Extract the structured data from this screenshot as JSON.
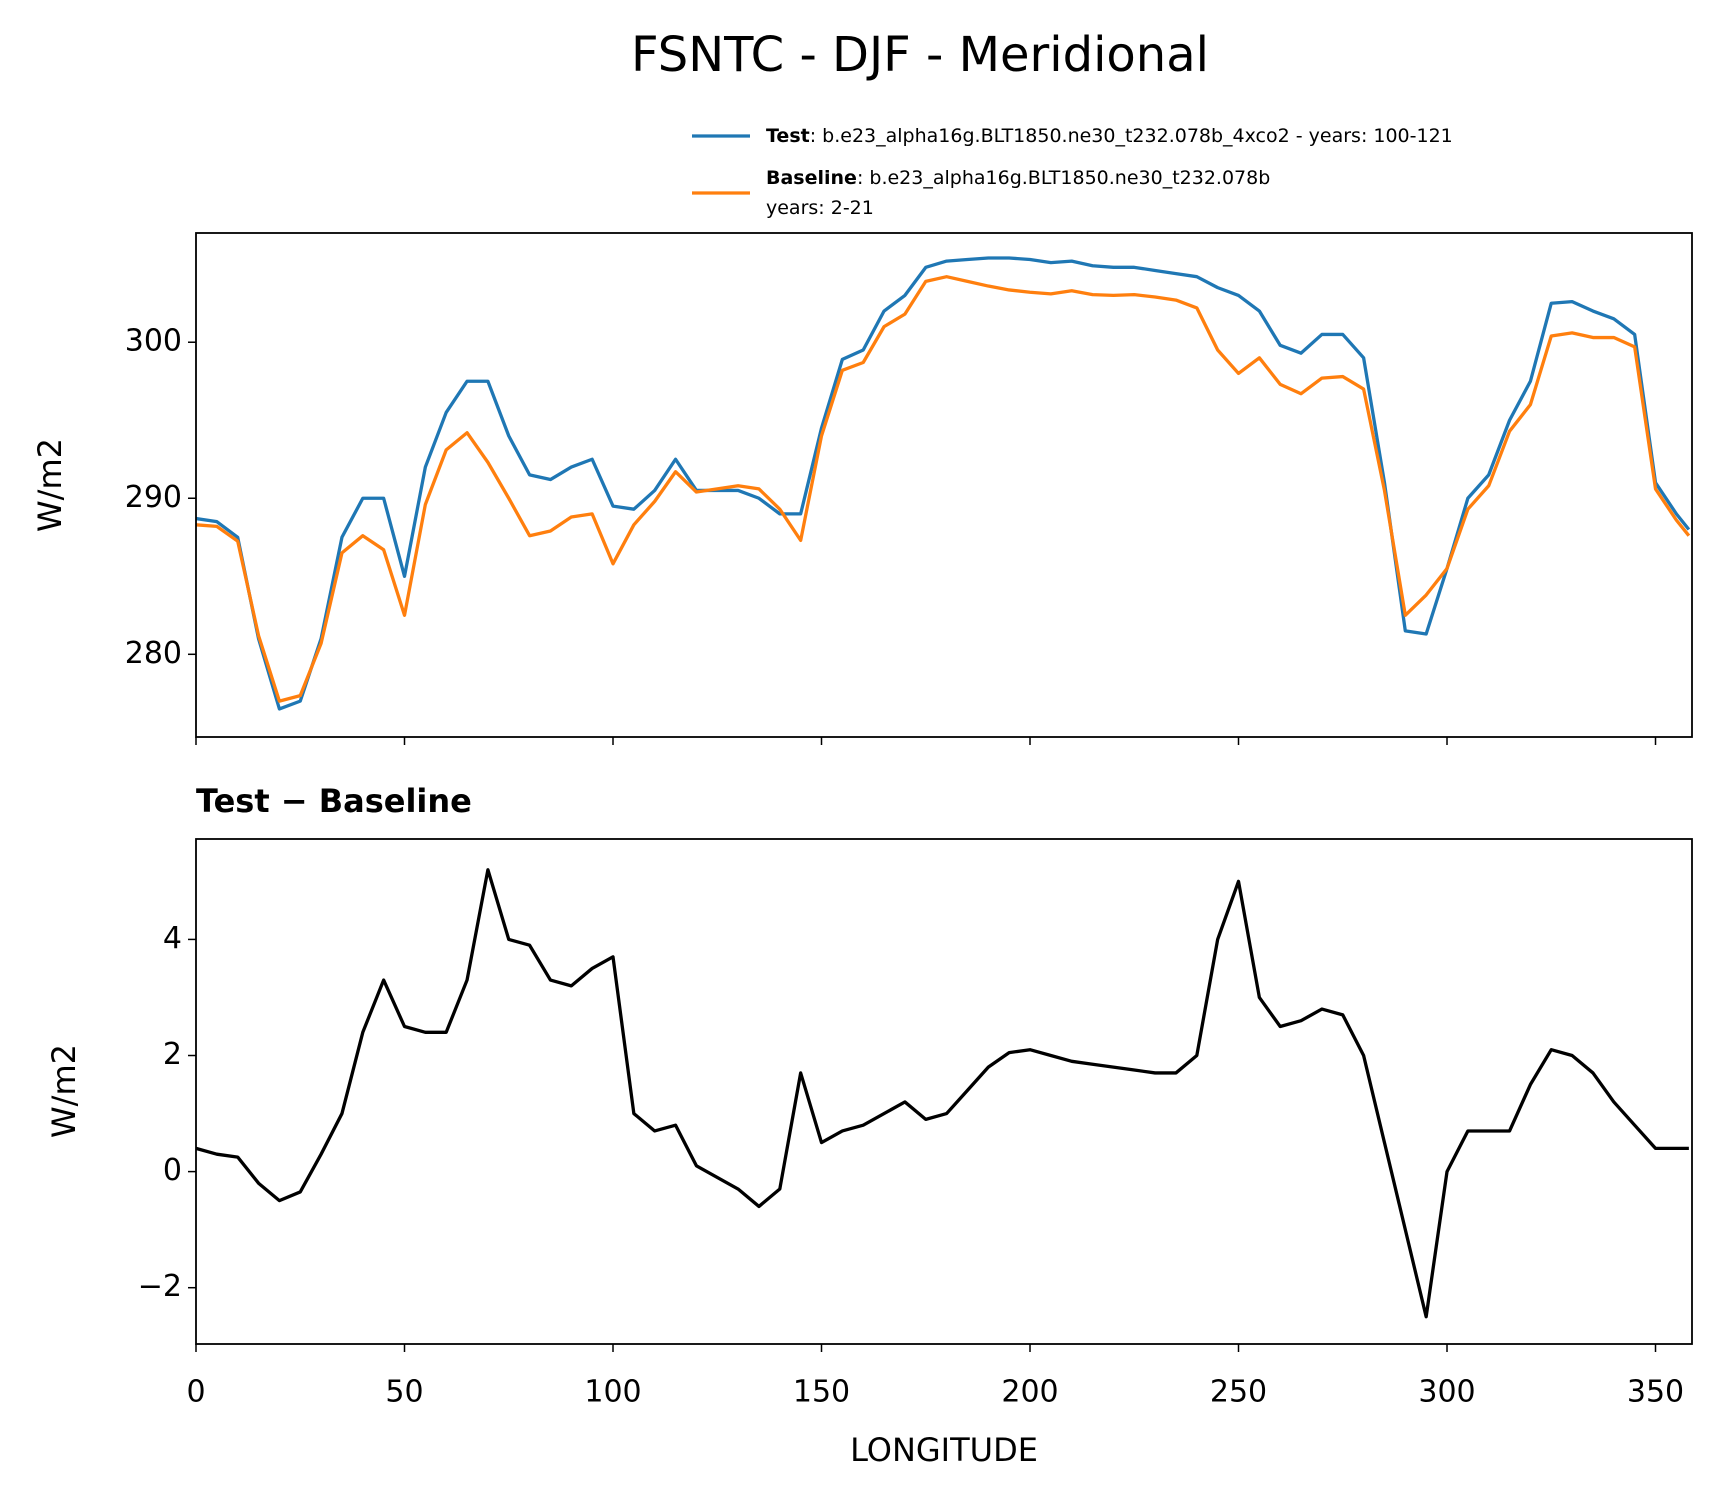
{
  "chart_data": [
    {
      "type": "line",
      "title": "FSNTC - DJF - Meridional",
      "y_label": "W/m2",
      "x": [
        0,
        5,
        10,
        15,
        20,
        25,
        30,
        35,
        40,
        45,
        50,
        55,
        60,
        65,
        70,
        75,
        80,
        85,
        90,
        95,
        100,
        105,
        110,
        115,
        120,
        125,
        130,
        135,
        140,
        145,
        150,
        155,
        160,
        165,
        170,
        175,
        180,
        185,
        190,
        195,
        200,
        205,
        210,
        215,
        220,
        225,
        230,
        235,
        240,
        245,
        250,
        255,
        260,
        265,
        270,
        275,
        280,
        285,
        290,
        295,
        300,
        305,
        310,
        315,
        320,
        325,
        330,
        335,
        340,
        345,
        350,
        355,
        358
      ],
      "xlim": [
        0,
        358.75
      ],
      "ylim": [
        274.7,
        307.0
      ],
      "yticks": [
        280,
        290,
        300
      ],
      "series": [
        {
          "name": "Test",
          "description": ": b.e23_alpha16g.BLT1850.ne30_t232.078b_4xco2 - years: 100-121",
          "color": "#1f77b4",
          "values": [
            288.7,
            288.5,
            287.5,
            281,
            276.5,
            277,
            281,
            287.5,
            290,
            290,
            285,
            292,
            295.5,
            297.5,
            297.5,
            294,
            291.5,
            291.2,
            292,
            292.5,
            289.5,
            289.3,
            290.5,
            292.5,
            290.5,
            290.5,
            290.5,
            290,
            289,
            289,
            294.5,
            298.9,
            299.5,
            302,
            303,
            304.8,
            305.2,
            305.3,
            305.4,
            305.4,
            305.3,
            305.1,
            305.2,
            304.9,
            304.8,
            304.8,
            304.6,
            304.4,
            304.2,
            303.5,
            303,
            302,
            299.8,
            299.3,
            300.5,
            300.5,
            299,
            291,
            281.5,
            281.3,
            285.5,
            290,
            291.5,
            295,
            297.5,
            302.5,
            302.6,
            302,
            301.5,
            300.5,
            291,
            289,
            288
          ]
        },
        {
          "name": "Baseline",
          "description": [
            ": b.e23_alpha16g.BLT1850.ne30_t232.078b",
            "years: 2-21"
          ],
          "color": "#ff7f0e",
          "values": [
            288.3,
            288.2,
            287.25,
            281.2,
            277,
            277.35,
            280.7,
            286.5,
            287.6,
            286.7,
            282.5,
            289.6,
            293.1,
            294.2,
            292.3,
            290,
            287.6,
            287.9,
            288.8,
            289,
            285.8,
            288.3,
            289.8,
            291.7,
            290.4,
            290.6,
            290.8,
            290.6,
            289.3,
            287.3,
            294,
            298.2,
            298.7,
            301,
            301.8,
            303.9,
            304.2,
            303.9,
            303.6,
            303.35,
            303.2,
            303.1,
            303.3,
            303.05,
            303,
            303.05,
            302.9,
            302.7,
            302.2,
            299.5,
            298,
            299,
            297.3,
            296.7,
            297.7,
            297.8,
            297,
            290.5,
            282.5,
            283.8,
            285.5,
            289.3,
            290.8,
            294.3,
            296,
            300.4,
            300.6,
            300.3,
            300.3,
            299.7,
            290.6,
            288.6,
            287.6
          ]
        }
      ]
    },
    {
      "type": "line",
      "title": "Test − Baseline",
      "y_label": "W/m2",
      "x_label": "LONGITUDE",
      "x": [
        0,
        5,
        10,
        15,
        20,
        25,
        30,
        35,
        40,
        45,
        50,
        55,
        60,
        65,
        70,
        75,
        80,
        85,
        90,
        95,
        100,
        105,
        110,
        115,
        120,
        125,
        130,
        135,
        140,
        145,
        150,
        155,
        160,
        165,
        170,
        175,
        180,
        185,
        190,
        195,
        200,
        205,
        210,
        215,
        220,
        225,
        230,
        235,
        240,
        245,
        250,
        255,
        260,
        265,
        270,
        275,
        280,
        285,
        290,
        295,
        300,
        305,
        310,
        315,
        320,
        325,
        330,
        335,
        340,
        345,
        350,
        355,
        358
      ],
      "xlim": [
        0,
        358.75
      ],
      "ylim": [
        -2.97,
        5.73
      ],
      "xticks": [
        0,
        50,
        100,
        150,
        200,
        250,
        300,
        350
      ],
      "yticks": [
        {
          "value": -2,
          "label": "−2"
        },
        0,
        2,
        4
      ],
      "series": [
        {
          "name": "Test − Baseline",
          "color": "#000000",
          "values": [
            0.4,
            0.3,
            0.25,
            -0.2,
            -0.5,
            -0.35,
            0.3,
            1,
            2.4,
            3.3,
            2.5,
            2.4,
            2.4,
            3.3,
            5.2,
            4,
            3.9,
            3.3,
            3.2,
            3.5,
            3.7,
            1,
            0.7,
            0.8,
            0.1,
            -0.1,
            -0.3,
            -0.6,
            -0.3,
            1.7,
            0.5,
            0.7,
            0.8,
            1,
            1.2,
            0.9,
            1,
            1.4,
            1.8,
            2.05,
            2.1,
            2,
            1.9,
            1.85,
            1.8,
            1.75,
            1.7,
            1.7,
            2,
            4,
            5,
            3,
            2.5,
            2.6,
            2.8,
            2.7,
            2,
            0.5,
            -1,
            -2.5,
            0,
            0.7,
            0.7,
            0.7,
            1.5,
            2.1,
            2,
            1.7,
            1.2,
            0.8,
            0.4,
            0.4,
            0.4
          ]
        }
      ]
    }
  ]
}
